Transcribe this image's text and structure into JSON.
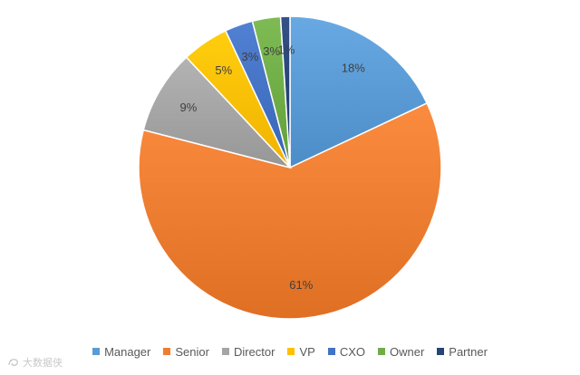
{
  "chart_data": {
    "type": "pie",
    "title": "",
    "categories": [
      "Manager",
      "Senior",
      "Director",
      "VP",
      "CXO",
      "Owner",
      "Partner"
    ],
    "values": [
      18,
      61,
      9,
      5,
      3,
      3,
      1
    ],
    "labels": [
      "18%",
      "61%",
      "9%",
      "5%",
      "3%",
      "3%",
      "1%"
    ],
    "colors": [
      "#5b9bd5",
      "#ed7d31",
      "#a5a5a5",
      "#ffc000",
      "#4472c4",
      "#70ad47",
      "#264478"
    ],
    "legend_position": "bottom",
    "start_angle_deg": 0,
    "direction": "clockwise"
  },
  "watermark": {
    "text": "大数据侠"
  }
}
